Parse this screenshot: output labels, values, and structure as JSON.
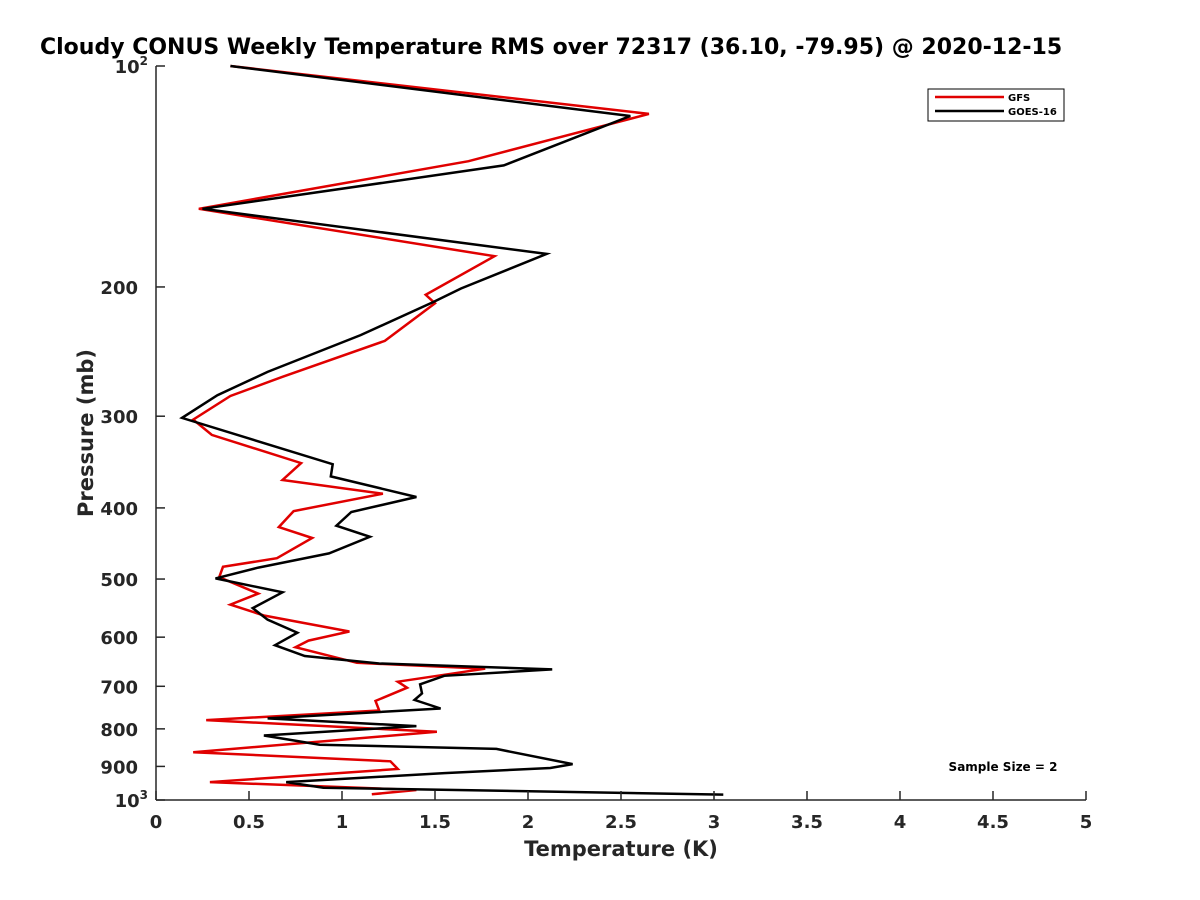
{
  "chart_data": {
    "type": "line",
    "title": "Cloudy CONUS Weekly Temperature RMS over 72317 (36.10, -79.95) @ 2020-12-15",
    "xlabel": "Temperature (K)",
    "ylabel": "Pressure (mb)",
    "xlim": [
      0,
      5
    ],
    "ylim": [
      100,
      1000
    ],
    "y_scale": "log",
    "y_reversed": true,
    "grid": false,
    "legend_position": "top-right",
    "x_ticks": [
      "0",
      "0.5",
      "1",
      "1.5",
      "2",
      "2.5",
      "3",
      "3.5",
      "4",
      "4.5",
      "5"
    ],
    "x_tick_values": [
      0,
      0.5,
      1,
      1.5,
      2,
      2.5,
      3,
      3.5,
      4,
      4.5,
      5
    ],
    "y_ticks": [
      {
        "value": 100,
        "base": "10",
        "exp": "2"
      },
      {
        "value": 200,
        "base": "200",
        "exp": ""
      },
      {
        "value": 300,
        "base": "300",
        "exp": ""
      },
      {
        "value": 400,
        "base": "400",
        "exp": ""
      },
      {
        "value": 500,
        "base": "500",
        "exp": ""
      },
      {
        "value": 600,
        "base": "600",
        "exp": ""
      },
      {
        "value": 700,
        "base": "700",
        "exp": ""
      },
      {
        "value": 800,
        "base": "800",
        "exp": ""
      },
      {
        "value": 900,
        "base": "900",
        "exp": ""
      },
      {
        "value": 1000,
        "base": "10",
        "exp": "3"
      }
    ],
    "annotation": "Sample Size = 2",
    "series": [
      {
        "name": "GFS",
        "color": "#e00000",
        "points": [
          {
            "x": 0.4,
            "p": 100
          },
          {
            "x": 2.65,
            "p": 116.2
          },
          {
            "x": 1.68,
            "p": 134.8
          },
          {
            "x": 0.23,
            "p": 156.5
          },
          {
            "x": 1.82,
            "p": 181.6
          },
          {
            "x": 1.45,
            "p": 205.0
          },
          {
            "x": 1.5,
            "p": 210.5
          },
          {
            "x": 1.23,
            "p": 236.9
          },
          {
            "x": 0.68,
            "p": 265.1
          },
          {
            "x": 0.4,
            "p": 281.6
          },
          {
            "x": 0.2,
            "p": 303.2
          },
          {
            "x": 0.3,
            "p": 318.1
          },
          {
            "x": 0.78,
            "p": 347.5
          },
          {
            "x": 0.68,
            "p": 366.5
          },
          {
            "x": 1.22,
            "p": 382.5
          },
          {
            "x": 0.74,
            "p": 404.0
          },
          {
            "x": 0.66,
            "p": 424.8
          },
          {
            "x": 0.84,
            "p": 439.6
          },
          {
            "x": 0.65,
            "p": 468.4
          },
          {
            "x": 0.36,
            "p": 481.1
          },
          {
            "x": 0.34,
            "p": 497.1
          },
          {
            "x": 0.55,
            "p": 523.4
          },
          {
            "x": 0.4,
            "p": 541.8
          },
          {
            "x": 0.58,
            "p": 560.6
          },
          {
            "x": 1.04,
            "p": 589.5
          },
          {
            "x": 0.82,
            "p": 606.5
          },
          {
            "x": 0.75,
            "p": 619.1
          },
          {
            "x": 1.08,
            "p": 650.2
          },
          {
            "x": 1.77,
            "p": 662.4
          },
          {
            "x": 1.3,
            "p": 689.9
          },
          {
            "x": 1.35,
            "p": 703.1
          },
          {
            "x": 1.18,
            "p": 732.9
          },
          {
            "x": 1.2,
            "p": 755.1
          },
          {
            "x": 0.27,
            "p": 778.3
          },
          {
            "x": 1.51,
            "p": 807.4
          },
          {
            "x": 0.2,
            "p": 860.8
          },
          {
            "x": 1.26,
            "p": 885.6
          },
          {
            "x": 1.3,
            "p": 907.3
          },
          {
            "x": 0.29,
            "p": 945.5
          },
          {
            "x": 1.4,
            "p": 969.0
          },
          {
            "x": 1.16,
            "p": 982.3
          }
        ]
      },
      {
        "name": "GOES-16",
        "color": "#000000",
        "points": [
          {
            "x": 0.4,
            "p": 100
          },
          {
            "x": 2.55,
            "p": 117.0
          },
          {
            "x": 1.87,
            "p": 136.6
          },
          {
            "x": 0.25,
            "p": 156.5
          },
          {
            "x": 2.1,
            "p": 180.3
          },
          {
            "x": 1.64,
            "p": 201.0
          },
          {
            "x": 1.49,
            "p": 209.7
          },
          {
            "x": 1.1,
            "p": 232.6
          },
          {
            "x": 0.6,
            "p": 261.1
          },
          {
            "x": 0.33,
            "p": 280.9
          },
          {
            "x": 0.14,
            "p": 301.6
          },
          {
            "x": 0.95,
            "p": 348.7
          },
          {
            "x": 0.94,
            "p": 362.3
          },
          {
            "x": 1.4,
            "p": 386.5
          },
          {
            "x": 1.05,
            "p": 405.1
          },
          {
            "x": 0.97,
            "p": 422.9
          },
          {
            "x": 1.15,
            "p": 437.9
          },
          {
            "x": 0.93,
            "p": 461.3
          },
          {
            "x": 0.55,
            "p": 482.3
          },
          {
            "x": 0.32,
            "p": 499.0
          },
          {
            "x": 0.68,
            "p": 521.2
          },
          {
            "x": 0.52,
            "p": 547.8
          },
          {
            "x": 0.6,
            "p": 568.0
          },
          {
            "x": 0.76,
            "p": 591.6
          },
          {
            "x": 0.64,
            "p": 615.3
          },
          {
            "x": 0.8,
            "p": 636.6
          },
          {
            "x": 1.2,
            "p": 651.7
          },
          {
            "x": 2.13,
            "p": 663.9
          },
          {
            "x": 1.55,
            "p": 677.3
          },
          {
            "x": 1.42,
            "p": 695.6
          },
          {
            "x": 1.43,
            "p": 715.7
          },
          {
            "x": 1.39,
            "p": 730.4
          },
          {
            "x": 1.53,
            "p": 750.4
          },
          {
            "x": 0.6,
            "p": 774.2
          },
          {
            "x": 1.4,
            "p": 793.2
          },
          {
            "x": 0.58,
            "p": 816.8
          },
          {
            "x": 0.88,
            "p": 840.7
          },
          {
            "x": 1.83,
            "p": 851.8
          },
          {
            "x": 2.24,
            "p": 893.5
          },
          {
            "x": 2.12,
            "p": 904.4
          },
          {
            "x": 1.55,
            "p": 919.1
          },
          {
            "x": 0.7,
            "p": 945.5
          },
          {
            "x": 0.9,
            "p": 962.2
          },
          {
            "x": 3.05,
            "p": 983.2
          }
        ]
      }
    ]
  }
}
